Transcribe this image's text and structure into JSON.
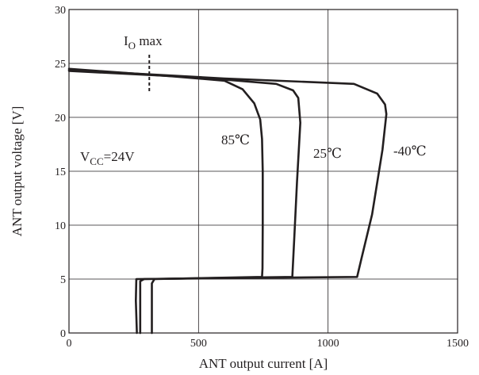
{
  "chart_data": {
    "type": "line",
    "title": "",
    "xlabel": "ANT output current [A]",
    "ylabel": "ANT output voltage [V]",
    "xlim": [
      0,
      1500
    ],
    "ylim": [
      0,
      30
    ],
    "xticks": [
      0,
      500,
      1000,
      1500
    ],
    "yticks": [
      0,
      5,
      10,
      15,
      20,
      25,
      30
    ],
    "xtick_labels": [
      "0",
      "500",
      "1000",
      "1500"
    ],
    "ytick_labels": [
      "0",
      "5",
      "10",
      "15",
      "20",
      "25",
      "30"
    ],
    "grid": true,
    "annotations": {
      "io_max": {
        "main": "I",
        "sub": "O",
        "suffix": " max",
        "x_value": 310
      },
      "vcc": {
        "main": "V",
        "sub": "CC",
        "suffix": "=24V"
      },
      "temp_85": "85℃",
      "temp_25": "25℃",
      "temp_m40": "-40℃"
    },
    "series": [
      {
        "label": "85℃",
        "x": [
          0,
          400,
          600,
          670,
          715,
          738,
          745,
          748,
          748,
          747,
          745,
          330,
          320,
          320
        ],
        "y": [
          24.5,
          23.8,
          23.4,
          22.6,
          21.3,
          19.8,
          18.0,
          15.0,
          10.0,
          6.0,
          5.2,
          5.0,
          4.6,
          0
        ]
      },
      {
        "label": "25℃",
        "x": [
          0,
          500,
          800,
          865,
          885,
          893,
          880,
          870,
          862,
          290,
          275,
          275
        ],
        "y": [
          24.3,
          23.7,
          23.1,
          22.5,
          21.8,
          19.5,
          14.0,
          9.0,
          5.2,
          5.0,
          4.8,
          0
        ]
      },
      {
        "label": "-40℃",
        "x": [
          0,
          600,
          1100,
          1190,
          1220,
          1225,
          1210,
          1170,
          1130,
          1112,
          260,
          258,
          262
        ],
        "y": [
          24.4,
          23.6,
          23.1,
          22.2,
          21.2,
          20.3,
          17.0,
          11.0,
          7.0,
          5.2,
          5.0,
          3.0,
          0
        ]
      }
    ]
  }
}
